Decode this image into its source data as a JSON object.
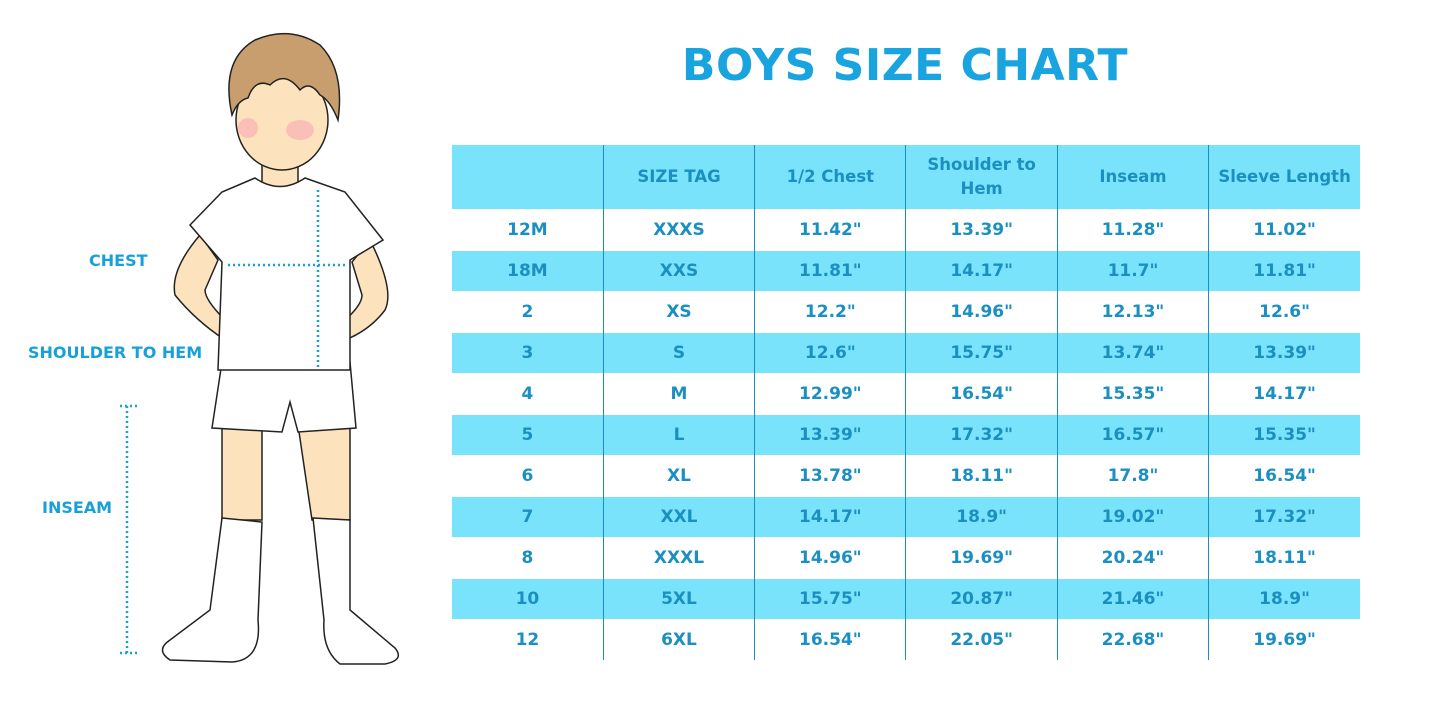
{
  "title": "BOYS SIZE CHART",
  "figure_labels": {
    "chest": "CHEST",
    "shoulder_to_hem": "SHOULDER TO HEM",
    "inseam": "INSEAM"
  },
  "colors": {
    "accent": "#19a3df",
    "stripe": "#79e3fc",
    "text": "#1b8fbf"
  },
  "table": {
    "headers": [
      "",
      "SIZE TAG",
      "1/2 Chest",
      "Shoulder to Hem",
      "Inseam",
      "Sleeve Length"
    ],
    "rows": [
      [
        "12M",
        "XXXS",
        "11.42\"",
        "13.39\"",
        "11.28\"",
        "11.02\""
      ],
      [
        "18M",
        "XXS",
        "11.81\"",
        "14.17\"",
        "11.7\"",
        "11.81\""
      ],
      [
        "2",
        "XS",
        "12.2\"",
        "14.96\"",
        "12.13\"",
        "12.6\""
      ],
      [
        "3",
        "S",
        "12.6\"",
        "15.75\"",
        "13.74\"",
        "13.39\""
      ],
      [
        "4",
        "M",
        "12.99\"",
        "16.54\"",
        "15.35\"",
        "14.17\""
      ],
      [
        "5",
        "L",
        "13.39\"",
        "17.32\"",
        "16.57\"",
        "15.35\""
      ],
      [
        "6",
        "XL",
        "13.78\"",
        "18.11\"",
        "17.8\"",
        "16.54\""
      ],
      [
        "7",
        "XXL",
        "14.17\"",
        "18.9\"",
        "19.02\"",
        "17.32\""
      ],
      [
        "8",
        "XXXL",
        "14.96\"",
        "19.69\"",
        "20.24\"",
        "18.11\""
      ],
      [
        "10",
        "5XL",
        "15.75\"",
        "20.87\"",
        "21.46\"",
        "18.9\""
      ],
      [
        "12",
        "6XL",
        "16.54\"",
        "22.05\"",
        "22.68\"",
        "19.69\""
      ]
    ]
  }
}
